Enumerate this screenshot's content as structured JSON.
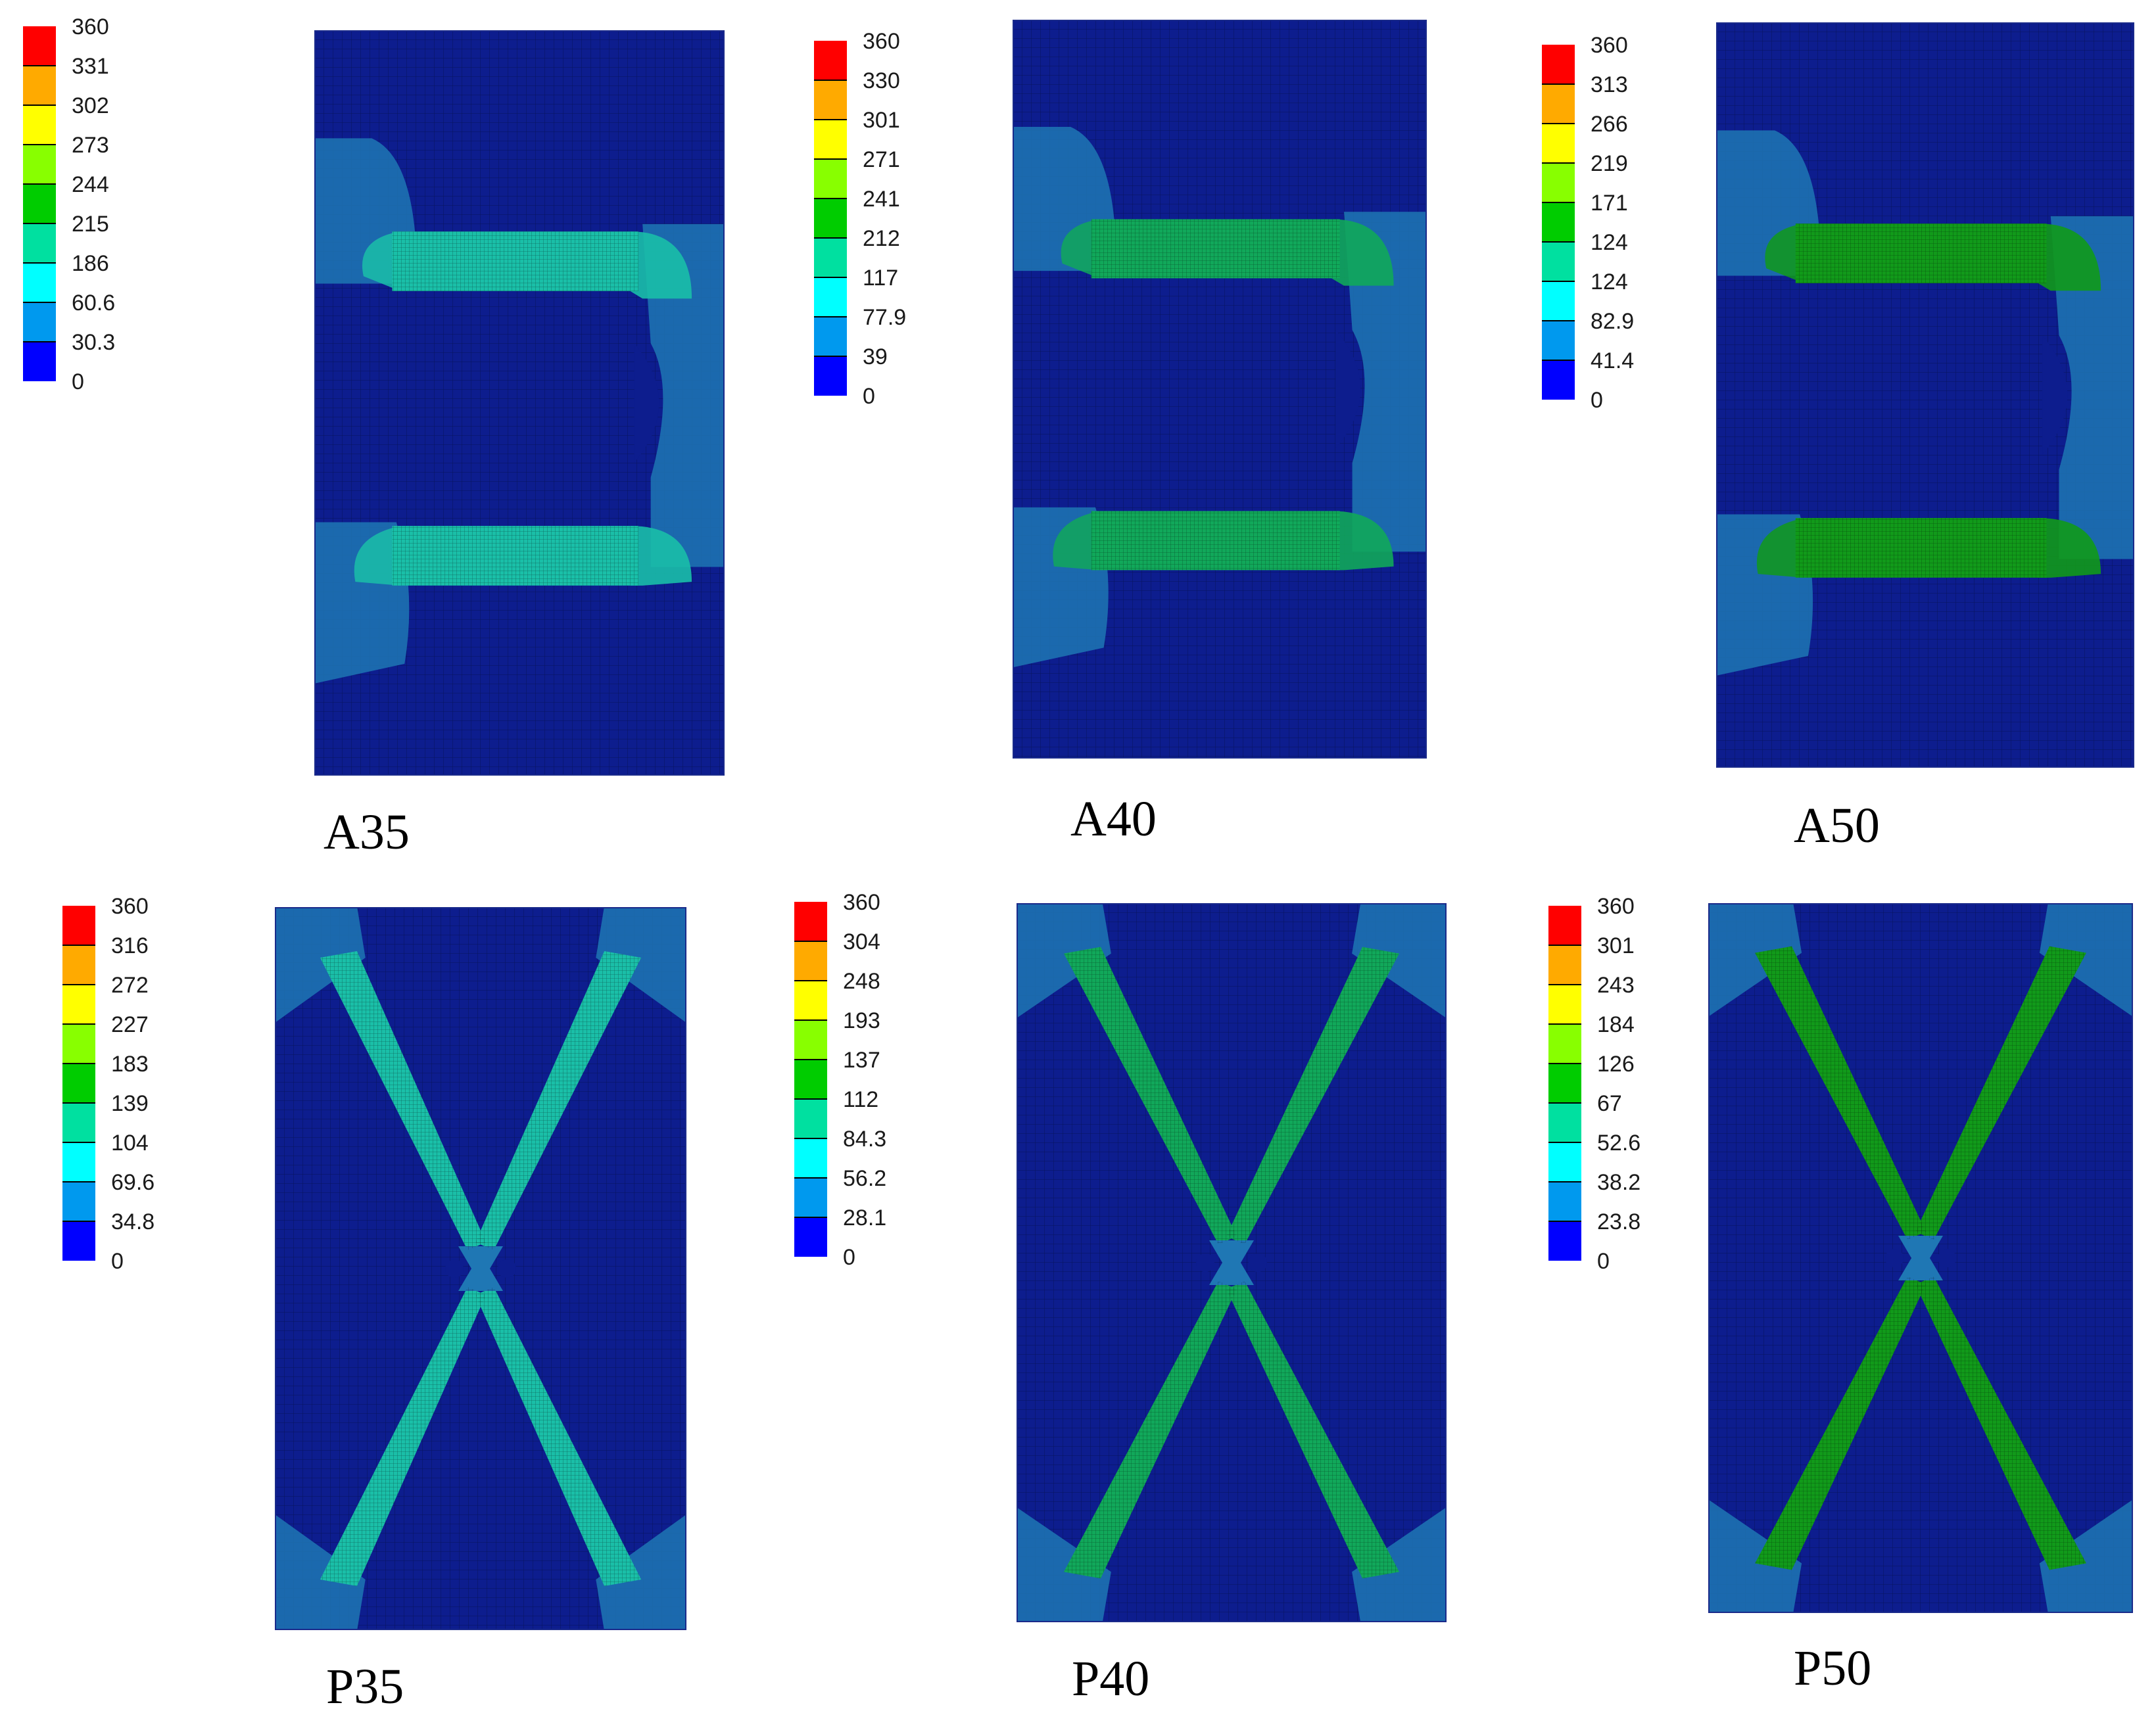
{
  "colors": {
    "red": "#ff0000",
    "orange": "#ffaa00",
    "yellow": "#ffff00",
    "light_green": "#88ff00",
    "green": "#00cc00",
    "aqua_green": "#00e0a0",
    "cyan": "#00ffff",
    "light_blue": "#0099ee",
    "blue": "#0000ff",
    "background_blue": "#0d1d8e",
    "mesh_line": "#000000",
    "member_cyan": "#1abfa8",
    "member_green": "#11a85a",
    "member_deep_green": "#119a1a",
    "halo_blue": "#1f77b4"
  },
  "panels": [
    {
      "id": "A35",
      "caption": "A35",
      "legend": [
        "360",
        "331",
        "302",
        "273",
        "244",
        "215",
        "186",
        "60.6",
        "30.3",
        "0"
      ],
      "member_color": "member_cyan",
      "shape": "bracket"
    },
    {
      "id": "A40",
      "caption": "A40",
      "legend": [
        "360",
        "330",
        "301",
        "271",
        "241",
        "212",
        "117",
        "77.9",
        "39",
        "0"
      ],
      "member_color": "member_green",
      "shape": "bracket"
    },
    {
      "id": "A50",
      "caption": "A50",
      "legend": [
        "360",
        "313",
        "266",
        "219",
        "171",
        "124",
        "124",
        "82.9",
        "41.4",
        "0"
      ],
      "member_color": "member_deep_green",
      "shape": "bracket"
    },
    {
      "id": "P35",
      "caption": "P35",
      "legend": [
        "360",
        "316",
        "272",
        "227",
        "183",
        "139",
        "104",
        "69.6",
        "34.8",
        "0"
      ],
      "member_color": "member_cyan",
      "shape": "cross"
    },
    {
      "id": "P40",
      "caption": "P40",
      "legend": [
        "360",
        "304",
        "248",
        "193",
        "137",
        "112",
        "84.3",
        "56.2",
        "28.1",
        "0"
      ],
      "member_color": "member_green",
      "shape": "cross"
    },
    {
      "id": "P50",
      "caption": "P50",
      "legend": [
        "360",
        "301",
        "243",
        "184",
        "126",
        "67",
        "52.6",
        "38.2",
        "23.8",
        "0"
      ],
      "member_color": "member_deep_green",
      "shape": "cross"
    }
  ]
}
